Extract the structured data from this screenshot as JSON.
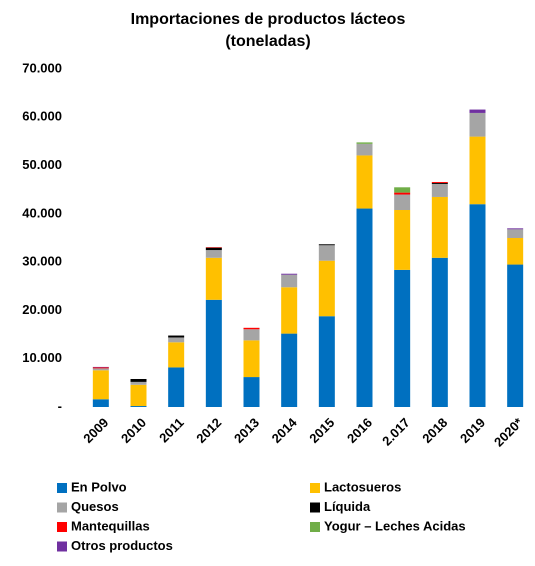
{
  "chart_data": {
    "type": "stacked_bar",
    "title": "Importaciones de productos lácteos",
    "subtitle": "(toneladas)",
    "categories": [
      "2009",
      "2010",
      "2011",
      "2012",
      "2013",
      "2014",
      "2015",
      "2016",
      "2.017",
      "2018",
      "2019",
      "2020*"
    ],
    "series": [
      {
        "name": "En Polvo",
        "color": "#0070c0",
        "values": [
          1600,
          200,
          8200,
          22200,
          6200,
          15200,
          18800,
          41100,
          28400,
          30900,
          42000,
          29500
        ]
      },
      {
        "name": "Lactosueros",
        "color": "#ffc000",
        "values": [
          6000,
          4400,
          5200,
          8700,
          7600,
          9600,
          11500,
          11000,
          12400,
          12600,
          14000,
          5500
        ]
      },
      {
        "name": "Quesos",
        "color": "#a5a5a5",
        "values": [
          400,
          600,
          1000,
          1600,
          2300,
          2600,
          3200,
          2400,
          3200,
          2700,
          4900,
          1800
        ]
      },
      {
        "name": "Líquida",
        "color": "#000000",
        "values": [
          0,
          600,
          400,
          500,
          0,
          0,
          200,
          0,
          0,
          200,
          0,
          0
        ]
      },
      {
        "name": "Mantequillas",
        "color": "#ff0000",
        "values": [
          200,
          0,
          0,
          100,
          300,
          0,
          0,
          0,
          400,
          200,
          0,
          0
        ]
      },
      {
        "name": "Yogur – Leches Acidas",
        "color": "#70ad47",
        "values": [
          0,
          0,
          0,
          0,
          0,
          0,
          0,
          300,
          1100,
          0,
          0,
          0
        ]
      },
      {
        "name": "Otros productos",
        "color": "#7030a0",
        "values": [
          100,
          0,
          0,
          0,
          0,
          200,
          0,
          0,
          0,
          0,
          700,
          200
        ]
      }
    ],
    "ylim": [
      0,
      70000
    ],
    "yticks": [
      {
        "value": 0,
        "label": "-"
      },
      {
        "value": 10000,
        "label": "10.000"
      },
      {
        "value": 20000,
        "label": "20.000"
      },
      {
        "value": 30000,
        "label": "30.000"
      },
      {
        "value": 40000,
        "label": "40.000"
      },
      {
        "value": 50000,
        "label": "50.000"
      },
      {
        "value": 60000,
        "label": "60.000"
      },
      {
        "value": 70000,
        "label": "70.000"
      }
    ],
    "grid": false,
    "legend": "bottom"
  }
}
